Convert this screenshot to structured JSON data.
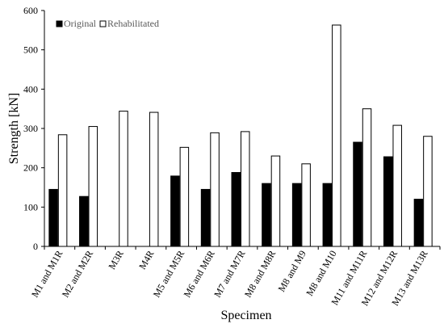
{
  "chart_data": {
    "type": "bar",
    "title": "",
    "xlabel": "Specimen",
    "ylabel": "Strength [kN]",
    "ylim": [
      0,
      600
    ],
    "yticks": [
      0,
      100,
      200,
      300,
      400,
      500,
      600
    ],
    "grid": false,
    "legend_position": "top-left",
    "categories": [
      "M1 and M1R",
      "M2 and M2R",
      "M3R",
      "M4R",
      "M5 and M5R",
      "M6 and M6R",
      "M7 and M7R",
      "M8 and M8R",
      "M8 and M9",
      "M8 and M10",
      "M11 and M11R",
      "M12 and M12R",
      "M13 and M13R"
    ],
    "series": [
      {
        "name": "Original",
        "color": "#000000",
        "values": [
          145,
          127,
          null,
          null,
          179,
          145,
          188,
          160,
          160,
          160,
          265,
          228,
          120
        ]
      },
      {
        "name": "Rehabilitated",
        "color": "#ffffff",
        "values": [
          284,
          305,
          344,
          341,
          252,
          289,
          292,
          230,
          210,
          563,
          350,
          308,
          280
        ]
      }
    ]
  }
}
